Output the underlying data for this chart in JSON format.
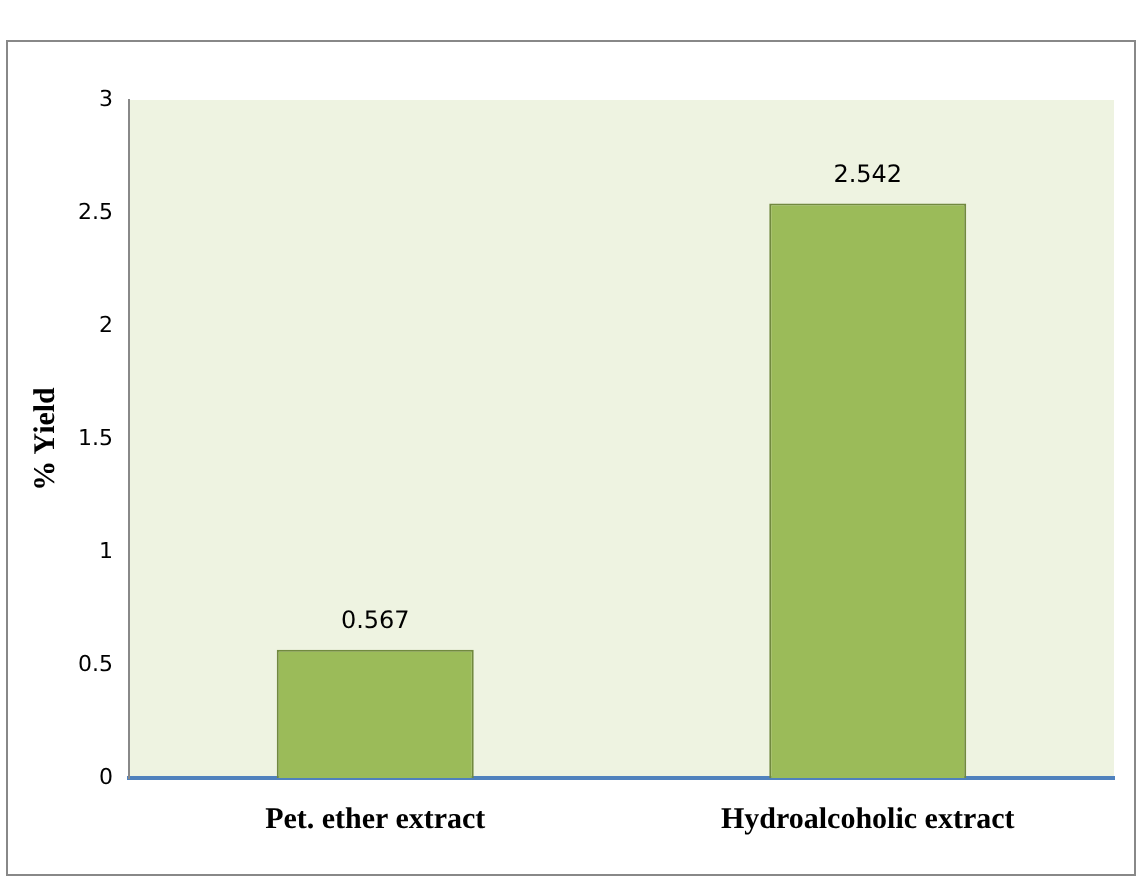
{
  "chart_data": {
    "type": "bar",
    "ylabel": "% Yield",
    "categories": [
      "Pet. ether extract",
      "Hydroalcoholic extract"
    ],
    "values": [
      0.567,
      2.542
    ],
    "color": "#9bbb59",
    "ylim": [
      0,
      3
    ],
    "yticks": [
      0,
      0.5,
      1,
      1.5,
      2,
      2.5,
      3
    ],
    "grid": false,
    "data_labels": true
  }
}
